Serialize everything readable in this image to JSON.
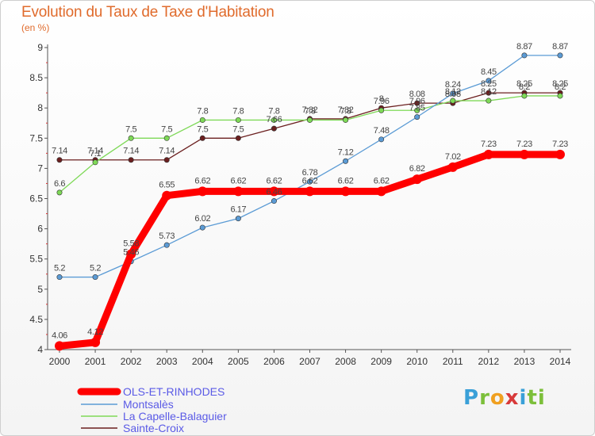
{
  "title": "Evolution du Taux de Taxe d'Habitation",
  "unit_label": "(en %)",
  "logo_text": "Proxiti",
  "chart_data": {
    "type": "line",
    "title": "Evolution du Taux de Taxe d'Habitation",
    "ylabel": "(en %)",
    "x": [
      "2000",
      "2001",
      "2002",
      "2003",
      "2004",
      "2005",
      "2006",
      "2007",
      "2008",
      "2009",
      "2010",
      "2011",
      "2012",
      "2013",
      "2014"
    ],
    "yticks": [
      "4",
      "4.5",
      "5",
      "5.5",
      "6",
      "6.5",
      "7",
      "7.5",
      "8",
      "8.5",
      "9"
    ],
    "ylim": [
      4,
      9
    ],
    "grid": false,
    "legend_position": "bottom-left",
    "series": [
      {
        "name": "OLS-ET-RINHODES",
        "color": "#ff0000",
        "values": [
          4.06,
          4.12,
          5.58,
          6.55,
          6.62,
          6.62,
          6.62,
          6.62,
          6.62,
          6.62,
          6.82,
          7.02,
          7.23,
          7.23,
          7.23
        ],
        "labels": [
          "4.06",
          "4.12",
          "5.58",
          "6.55",
          "6.62",
          "6.62",
          "6.62",
          "6.62",
          "6.62",
          "6.62",
          "6.82",
          "7.02",
          "7.23",
          "7.23",
          "7.23"
        ]
      },
      {
        "name": "Montsalès",
        "color": "#5b9bd5",
        "values": [
          5.2,
          5.2,
          5.46,
          5.73,
          6.02,
          6.17,
          6.46,
          6.78,
          7.12,
          7.48,
          7.85,
          8.24,
          8.45,
          8.87,
          8.87
        ],
        "labels": [
          "5.2",
          "5.2",
          "5.46",
          "5.73",
          "6.02",
          "6.17",
          "6.46",
          "6.78",
          "7.12",
          "7.48",
          "7.85",
          "8.24",
          "8.45",
          "8.87",
          "8.87"
        ]
      },
      {
        "name": "La Capelle-Balaguier",
        "color": "#7ed957",
        "values": [
          6.6,
          7.1,
          7.5,
          7.5,
          7.8,
          7.8,
          7.8,
          7.8,
          7.8,
          7.96,
          7.96,
          8.12,
          8.12,
          8.2,
          8.2
        ],
        "labels": [
          "6.6",
          "7.1",
          "7.5",
          "7.5",
          "7.8",
          "7.8",
          "7.8",
          "7.8",
          "7.8",
          "7.96",
          "7.96",
          "8.12",
          "8.12",
          "8.2",
          "8.2"
        ]
      },
      {
        "name": "Sainte-Croix",
        "color": "#6b1f1f",
        "values": [
          7.14,
          7.14,
          7.14,
          7.14,
          7.5,
          7.5,
          7.66,
          7.82,
          7.82,
          8.0,
          8.08,
          8.08,
          8.25,
          8.25,
          8.25
        ],
        "labels": [
          "7.14",
          "7.14",
          "7.14",
          "7.14",
          "7.5",
          "7.5",
          "7.66",
          "7.82",
          "7.82",
          "8",
          "8.08",
          "8.08",
          "8.25",
          "8.25",
          "8.25"
        ]
      }
    ]
  }
}
